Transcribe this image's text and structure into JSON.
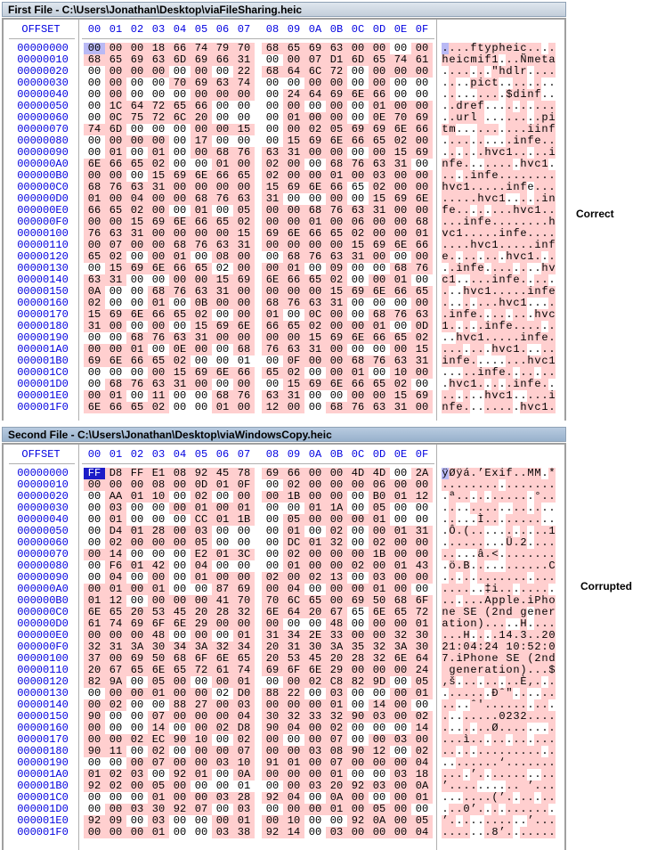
{
  "first_file": {
    "title": "First File - C:\\Users\\Jonathan\\Desktop\\viaFileSharing.heic",
    "status_label": "Correct",
    "rows": [
      "00 00 00 18 66 74 79 70 68 65 69 63 00 00 00 00",
      "68 65 69 63 6D 69 66 31 00 00 07 D1 6D 65 74 61",
      "00 00 00 00 00 00 00 22 68 64 6C 72 00 00 00 00",
      "00 00 00 00 70 69 63 74 00 00 00 00 00 00 00 00",
      "00 00 00 00 00 00 00 00 00 24 64 69 6E 66 00 00",
      "00 1C 64 72 65 66 00 00 00 00 00 00 00 01 00 00",
      "00 0C 75 72 6C 20 00 00 00 01 00 00 00 0E 70 69",
      "74 6D 00 00 00 00 00 15 00 00 02 05 69 69 6E 66",
      "00 00 00 00 00 17 00 00 00 15 69 6E 66 65 02 00",
      "00 01 00 01 00 00 68 76 63 31 00 00 00 00 15 69",
      "6E 66 65 02 00 00 01 00 02 00 00 68 76 63 31 00",
      "00 00 00 15 69 6E 66 65 02 00 00 01 00 03 00 00",
      "68 76 63 31 00 00 00 00 15 69 6E 66 65 02 00 00",
      "01 00 04 00 00 68 76 63 31 00 00 00 00 15 69 6E",
      "66 65 02 00 00 01 00 05 00 00 68 76 63 31 00 00",
      "00 00 15 69 6E 66 65 02 00 00 01 00 06 00 00 68",
      "76 63 31 00 00 00 00 15 69 6E 66 65 02 00 00 01",
      "00 07 00 00 68 76 63 31 00 00 00 00 15 69 6E 66",
      "65 02 00 00 01 00 08 00 00 68 76 63 31 00 00 00",
      "00 15 69 6E 66 65 02 00 00 01 00 09 00 00 68 76",
      "63 31 00 00 00 00 15 69 6E 66 65 02 00 00 01 00",
      "0A 00 00 68 76 63 31 00 00 00 00 15 69 6E 66 65",
      "02 00 00 01 00 0B 00 00 68 76 63 31 00 00 00 00",
      "15 69 6E 66 65 02 00 00 01 00 0C 00 00 68 76 63",
      "31 00 00 00 00 15 69 6E 66 65 02 00 00 01 00 0D",
      "00 00 68 76 63 31 00 00 00 00 15 69 6E 66 65 02",
      "00 00 01 00 0E 00 00 68 76 63 31 00 00 00 00 15",
      "69 6E 66 65 02 00 00 01 00 0F 00 00 68 76 63 31",
      "00 00 00 00 15 69 6E 66 65 02 00 00 01 00 10 00",
      "00 68 76 63 31 00 00 00 00 15 69 6E 66 65 02 00",
      "00 01 00 11 00 00 68 76 63 31 00 00 00 00 15 69",
      "6E 66 65 02 00 00 01 00 12 00 00 68 76 63 31 00"
    ]
  },
  "second_file": {
    "title": "Second File - C:\\Users\\Jonathan\\Desktop\\viaWindowsCopy.heic",
    "status_label": "Corrupted",
    "rows": [
      "FF D8 FF E1 08 92 45 78 69 66 00 00 4D 4D 00 2A",
      "00 00 00 08 00 0D 01 0F 00 02 00 00 00 06 00 00",
      "00 AA 01 10 00 02 00 00 00 1B 00 00 00 B0 01 12",
      "00 03 00 00 00 01 00 01 00 00 01 1A 00 05 00 00",
      "00 01 00 00 00 CC 01 1B 00 05 00 00 00 01 00 00",
      "00 D4 01 28 00 03 00 00 00 01 00 02 00 00 01 31",
      "00 02 00 00 00 05 00 00 00 DC 01 32 00 02 00 00",
      "00 14 00 00 00 E2 01 3C 00 02 00 00 00 1B 00 00",
      "00 F6 01 42 00 04 00 00 00 01 00 00 02 00 01 43",
      "00 04 00 00 00 01 00 00 02 00 02 13 00 03 00 00",
      "00 01 00 01 00 00 87 69 00 04 00 00 00 01 00 00",
      "01 12 00 00 00 00 41 70 70 6C 65 00 69 50 68 6F",
      "6E 65 20 53 45 20 28 32 6E 64 20 67 65 6E 65 72",
      "61 74 69 6F 6E 29 00 00 00 00 00 48 00 00 00 01",
      "00 00 00 48 00 00 00 01 31 34 2E 33 00 00 32 30",
      "32 31 3A 30 34 3A 32 34 20 31 30 3A 35 32 3A 30",
      "37 00 69 50 68 6F 6E 65 20 53 45 20 28 32 6E 64",
      "20 67 65 6E 65 72 61 74 69 6F 6E 29 00 00 00 24",
      "82 9A 00 05 00 00 00 01 00 00 02 C8 82 9D 00 05",
      "00 00 00 01 00 00 02 D0 88 22 00 03 00 00 00 01",
      "00 02 00 00 88 27 00 03 00 00 00 01 00 14 00 00",
      "90 00 00 07 00 00 00 04 30 32 33 32 90 03 00 02",
      "00 00 00 14 00 00 02 D8 90 04 00 02 00 00 00 14",
      "00 00 02 EC 90 10 00 02 00 00 00 07 00 00 03 00",
      "90 11 00 02 00 00 00 07 00 00 03 08 90 12 00 02",
      "00 00 00 07 00 00 03 10 91 01 00 07 00 00 00 04",
      "01 02 03 00 92 01 00 0A 00 00 00 01 00 00 03 18",
      "92 02 00 05 00 00 00 01 00 00 03 20 92 03 00 0A",
      "00 00 00 01 00 00 03 28 92 04 00 0A 00 00 00 01",
      "00 00 03 30 92 07 00 03 00 00 00 01 00 05 00 00",
      "92 09 00 03 00 00 00 01 00 10 00 00 92 0A 00 05",
      "00 00 00 01 00 00 03 38 92 14 00 03 00 00 00 04"
    ]
  },
  "offset_header": "OFFSET",
  "column_headers": [
    "00",
    "01",
    "02",
    "03",
    "04",
    "05",
    "06",
    "07",
    "08",
    "09",
    "0A",
    "0B",
    "0C",
    "0D",
    "0E",
    "0F"
  ],
  "offsets": [
    "00000000",
    "00000010",
    "00000020",
    "00000030",
    "00000040",
    "00000050",
    "00000060",
    "00000070",
    "00000080",
    "00000090",
    "000000A0",
    "000000B0",
    "000000C0",
    "000000D0",
    "000000E0",
    "000000F0",
    "00000100",
    "00000110",
    "00000120",
    "00000130",
    "00000140",
    "00000150",
    "00000160",
    "00000170",
    "00000180",
    "00000190",
    "000001A0",
    "000001B0",
    "000001C0",
    "000001D0",
    "000001E0",
    "000001F0"
  ],
  "colors": {
    "diff_highlight": "#ffcfcf",
    "offset_text": "#0000e0"
  }
}
